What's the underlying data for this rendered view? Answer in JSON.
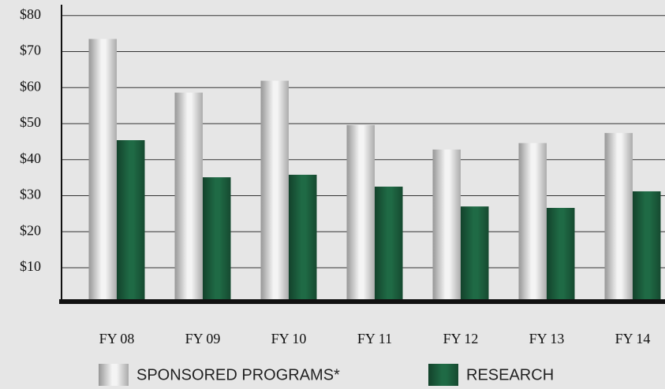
{
  "chart_data": {
    "type": "bar",
    "categories": [
      "FY 08",
      "FY 09",
      "FY 10",
      "FY 11",
      "FY 12",
      "FY 13",
      "FY 14"
    ],
    "series": [
      {
        "name": "SPONSORED PROGRAMS*",
        "color": "#f4f4f4",
        "values": [
          73.5,
          58.6,
          61.9,
          49.6,
          42.8,
          44.6,
          47.4
        ]
      },
      {
        "name": "RESEARCH",
        "color": "#1f6a45",
        "values": [
          45.4,
          35.1,
          35.8,
          32.5,
          27.0,
          26.6,
          31.2
        ]
      }
    ],
    "ylim": [
      0,
      83
    ],
    "yticks": [
      {
        "value": 10,
        "label": "$10"
      },
      {
        "value": 20,
        "label": "$20"
      },
      {
        "value": 30,
        "label": "$30"
      },
      {
        "value": 40,
        "label": "$40"
      },
      {
        "value": 50,
        "label": "$50"
      },
      {
        "value": 60,
        "label": "$60"
      },
      {
        "value": 70,
        "label": "$70"
      },
      {
        "value": 80,
        "label": "$80"
      }
    ],
    "grid": true
  }
}
